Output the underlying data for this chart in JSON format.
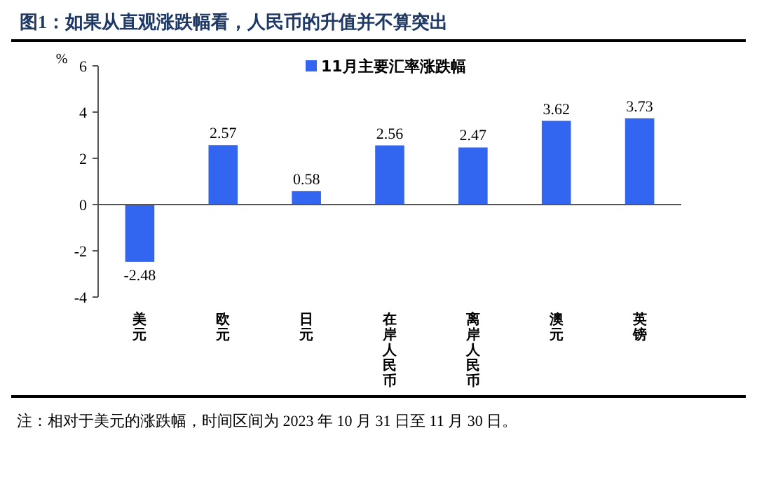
{
  "chart_data": {
    "type": "bar",
    "title": "图1：如果从直观涨跌幅看，人民币的升值并不算突出",
    "ylabel": "%",
    "categories": [
      "美元",
      "欧元",
      "日元",
      "在岸人民币",
      "离岸人民币",
      "澳元",
      "英镑"
    ],
    "series": [
      {
        "name": "11月主要汇率涨跌幅",
        "color": "#3366f0",
        "values": [
          -2.48,
          2.57,
          0.58,
          2.56,
          2.47,
          3.62,
          3.73
        ]
      }
    ],
    "ylim": [
      -4,
      6
    ],
    "yticks": [
      -4,
      -2,
      0,
      2,
      4,
      6
    ],
    "data_labels": true,
    "legend": "top",
    "annotations": [
      "注：相对于美元的涨跌幅，时间区间为 2023 年 10 月 31 日至 11 月 30 日。"
    ]
  }
}
